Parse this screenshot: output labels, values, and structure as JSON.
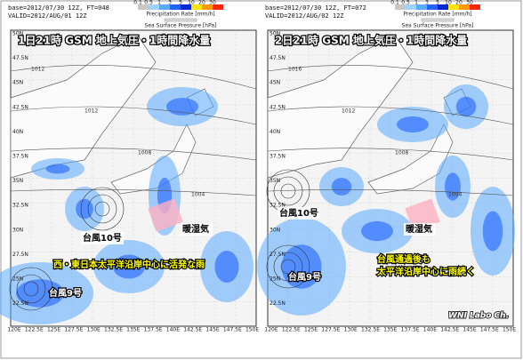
{
  "panels": [
    {
      "base": "base=2012/07/30 12Z, FT=048",
      "valid": "VALID=2012/AUG/01 12Z",
      "precip_legend": "Precipitation Rate [mm/h]",
      "pressure_legend": "Sea Surface Pressure [hPa]",
      "colorbar_ticks": [
        "0.1",
        "0.5",
        "1",
        "3",
        "5",
        "10",
        "20",
        "30"
      ],
      "title": "1日21時 GSM 地上気圧・1時間降水量",
      "lat_labels": [
        "50N",
        "47.5N",
        "45N",
        "42.5N",
        "40N",
        "37.5N",
        "35N",
        "32.5N",
        "30N",
        "27.5N",
        "25N",
        "22.5N"
      ],
      "lon_labels": [
        "120E",
        "122.5E",
        "125E",
        "127.5E",
        "130E",
        "132.5E",
        "135E",
        "137.5E",
        "140E",
        "142.5E",
        "145E",
        "147.5E",
        "150E"
      ],
      "isobar_labels": [
        "1012",
        "1012",
        "1008",
        "1004"
      ],
      "typhoon_10": "台風10号",
      "warm_moist": "暖湿気",
      "note": "西・東日本太平洋沿岸中心に活発な雨",
      "typhoon_9": "台風9号"
    },
    {
      "base": "base=2012/07/30 12Z, FT=072",
      "valid": "VALID=2012/AUG/02 12Z",
      "precip_legend": "Precipitation Rate [mm/h]",
      "pressure_legend": "Sea Surface Pressure [hPa]",
      "colorbar_ticks": [
        "0.1",
        "0.5",
        "1",
        "3",
        "5",
        "10",
        "20",
        "30"
      ],
      "title": "2日21時 GSM 地上気圧・1時間降水量",
      "lat_labels": [
        "50N",
        "47.5N",
        "45N",
        "42.5N",
        "40N",
        "37.5N",
        "35N",
        "32.5N",
        "30N",
        "27.5N",
        "25N",
        "22.5N"
      ],
      "lon_labels": [
        "120E",
        "122.5E",
        "125E",
        "127.5E",
        "130E",
        "132.5E",
        "135E",
        "137.5E",
        "140E",
        "142.5E",
        "145E",
        "147.5E",
        "150E"
      ],
      "isobar_labels": [
        "1016",
        "1012",
        "1008",
        "1004"
      ],
      "typhoon_10": "台風10号",
      "warm_moist": "暖湿気",
      "note": "台風通過後も",
      "note2": "太平洋沿岸中心に雨続く",
      "typhoon_9": "台風9号",
      "watermark": "WNI Labo Ch."
    }
  ]
}
